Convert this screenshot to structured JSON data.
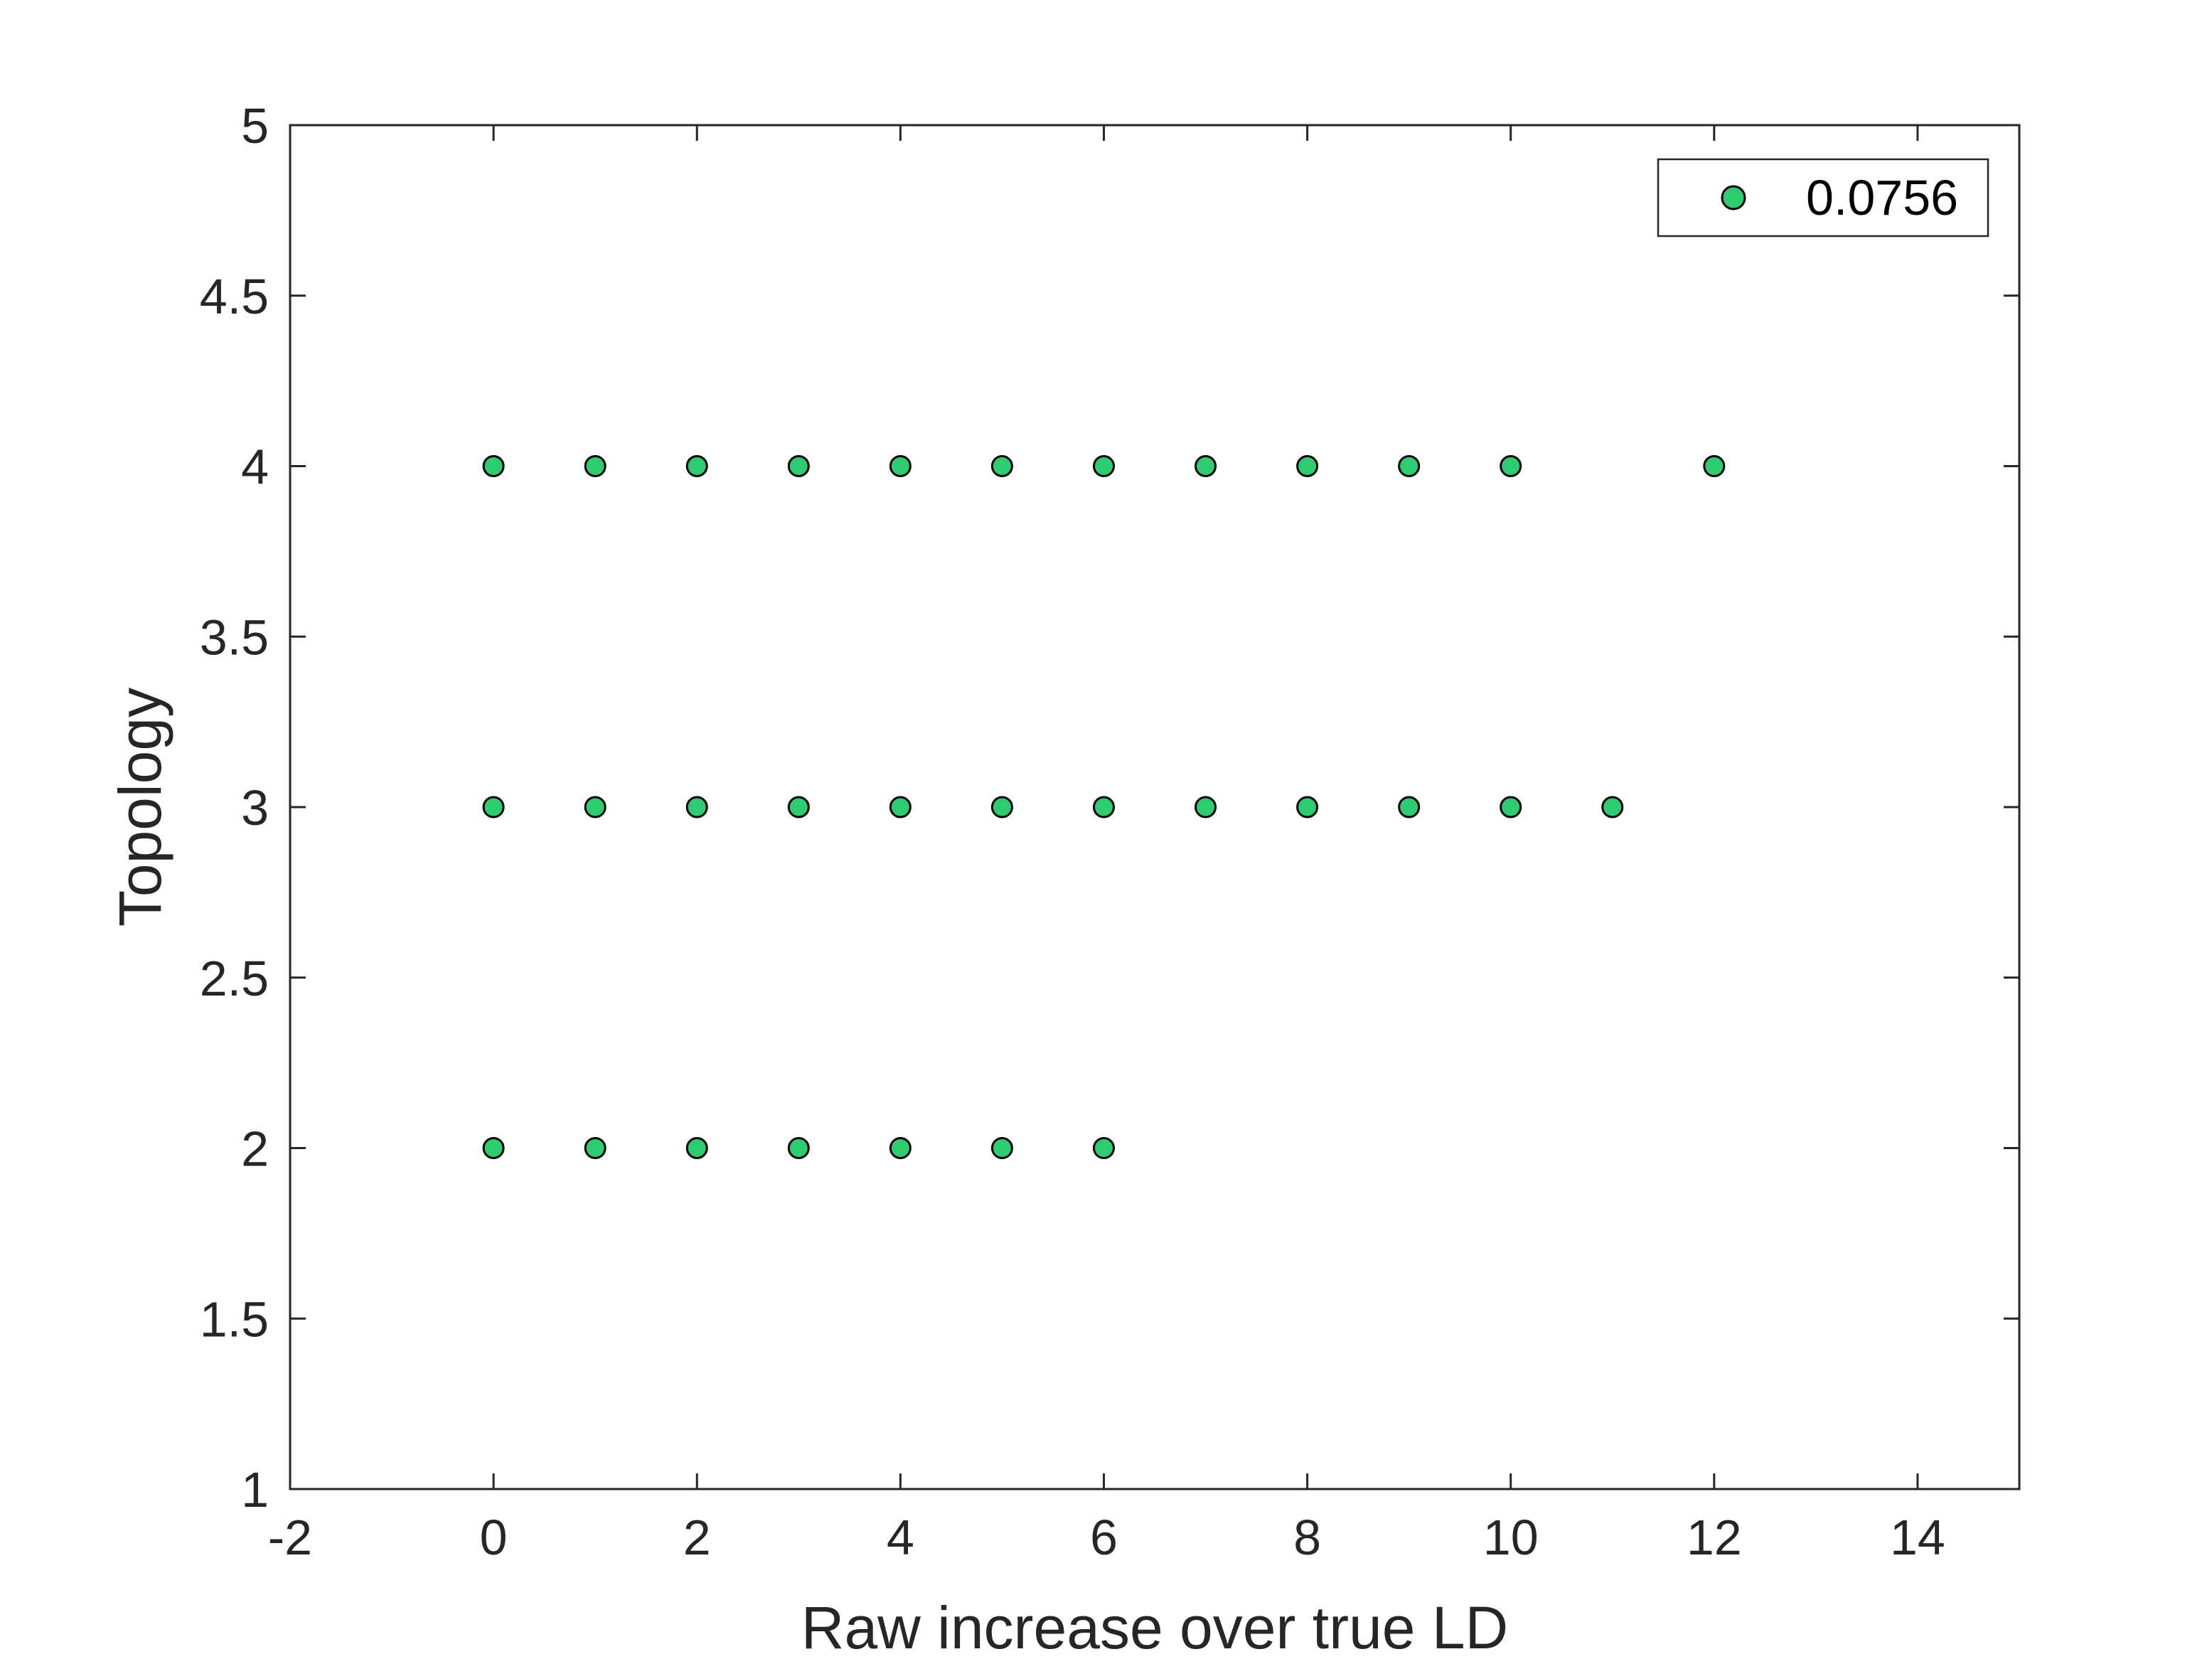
{
  "chart_data": {
    "type": "scatter",
    "xlabel": "Raw increase over true LD",
    "ylabel": "Topology",
    "xlim": [
      -2,
      15
    ],
    "ylim": [
      1,
      5
    ],
    "xticks": [
      "-2",
      "0",
      "2",
      "4",
      "6",
      "8",
      "10",
      "12",
      "14"
    ],
    "yticks": [
      "1",
      "1.5",
      "2",
      "2.5",
      "3",
      "3.5",
      "4",
      "4.5",
      "5"
    ],
    "grid": false,
    "legend_position": "top-right",
    "marker_color": "#2ecc71",
    "marker_edge_color": "#000000",
    "series": [
      {
        "name": "0.0756",
        "points": [
          [
            0,
            2
          ],
          [
            1,
            2
          ],
          [
            2,
            2
          ],
          [
            3,
            2
          ],
          [
            4,
            2
          ],
          [
            5,
            2
          ],
          [
            6,
            2
          ],
          [
            0,
            3
          ],
          [
            1,
            3
          ],
          [
            2,
            3
          ],
          [
            3,
            3
          ],
          [
            4,
            3
          ],
          [
            5,
            3
          ],
          [
            6,
            3
          ],
          [
            7,
            3
          ],
          [
            8,
            3
          ],
          [
            9,
            3
          ],
          [
            10,
            3
          ],
          [
            11,
            3
          ],
          [
            0,
            4
          ],
          [
            1,
            4
          ],
          [
            2,
            4
          ],
          [
            3,
            4
          ],
          [
            4,
            4
          ],
          [
            5,
            4
          ],
          [
            6,
            4
          ],
          [
            7,
            4
          ],
          [
            8,
            4
          ],
          [
            9,
            4
          ],
          [
            10,
            4
          ],
          [
            12,
            4
          ]
        ]
      }
    ]
  }
}
